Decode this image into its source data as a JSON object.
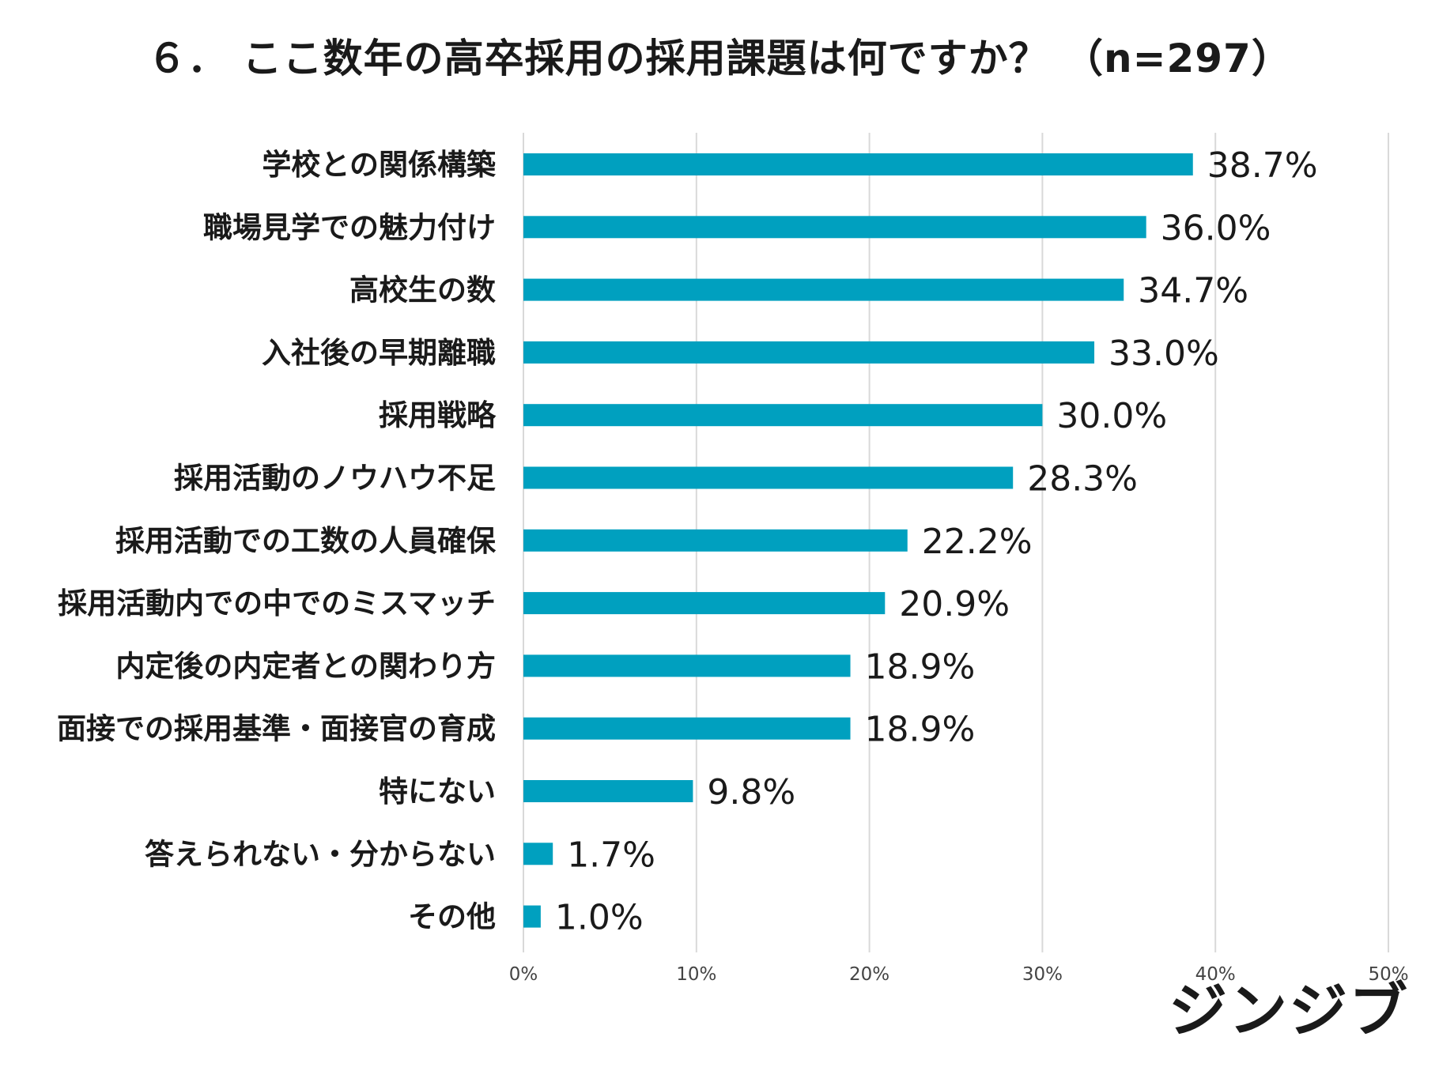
{
  "chart_data": {
    "type": "bar",
    "orientation": "horizontal",
    "title": "６． ここ数年の高卒採用の採用課題は何ですか？ （n=297）",
    "categories": [
      "学校との関係構築",
      "職場見学での魅力付け",
      "高校生の数",
      "入社後の早期離職",
      "採用戦略",
      "採用活動のノウハウ不足",
      "採用活動での工数の人員確保",
      "採用活動内での中でのミスマッチ",
      "内定後の内定者との関わり方",
      "面接での採用基準・面接官の育成",
      "特にない",
      "答えられない・分からない",
      "その他"
    ],
    "values": [
      38.7,
      36.0,
      34.7,
      33.0,
      30.0,
      28.3,
      22.2,
      20.9,
      18.9,
      18.9,
      9.8,
      1.7,
      1.0
    ],
    "value_labels": [
      "38.7%",
      "36.0%",
      "34.7%",
      "33.0%",
      "30.0%",
      "28.3%",
      "22.2%",
      "20.9%",
      "18.9%",
      "18.9%",
      "9.8%",
      "1.7%",
      "1.0%"
    ],
    "xlim": [
      0,
      50
    ],
    "ticks": [
      0,
      10,
      20,
      30,
      40,
      50
    ],
    "tick_labels": [
      "0%",
      "10%",
      "20%",
      "30%",
      "40%",
      "50%"
    ],
    "xlabel": "",
    "ylabel": "",
    "grid": true,
    "legend": "none",
    "bar_color": "#00a0bf",
    "grid_color": "#d9d9d9"
  },
  "brand": {
    "logo_text": "ジンジブ"
  }
}
